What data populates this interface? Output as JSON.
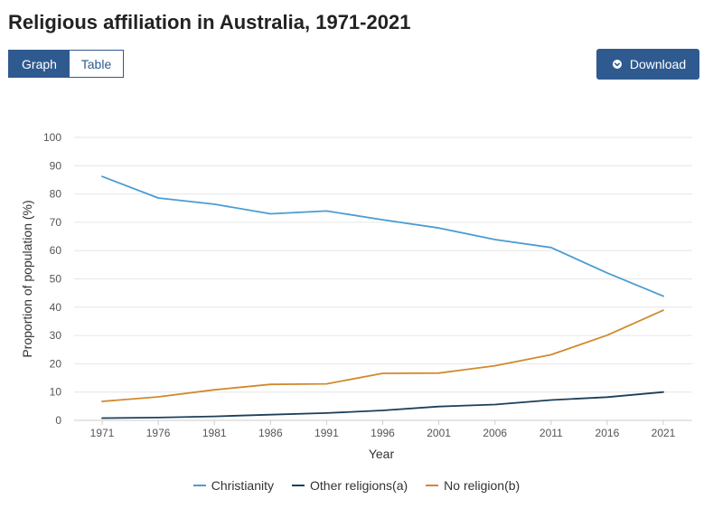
{
  "title": "Religious affiliation in Australia, 1971-2021",
  "tabs": {
    "graph": "Graph",
    "table": "Table"
  },
  "download_label": "Download",
  "icons": {
    "download": "chevron-down-icon"
  },
  "colors": {
    "accent": "#2f5a8f"
  },
  "chart_data": {
    "type": "line",
    "xlabel": "Year",
    "ylabel": "Proportion of population (%)",
    "ylim": [
      0,
      100
    ],
    "yticks": [
      "0",
      "10",
      "20",
      "30",
      "40",
      "50",
      "60",
      "70",
      "80",
      "90",
      "100"
    ],
    "categories": [
      "1971",
      "1976",
      "1981",
      "1986",
      "1991",
      "1996",
      "2001",
      "2006",
      "2011",
      "2016",
      "2021"
    ],
    "grid": true,
    "legend_position": "bottom",
    "series": [
      {
        "name": "Christianity",
        "color": "#4b9cd3",
        "values": [
          86.2,
          78.6,
          76.4,
          73.0,
          74.0,
          70.9,
          68.0,
          63.9,
          61.1,
          52.1,
          43.9
        ]
      },
      {
        "name": "Other religions(a)",
        "color": "#1c3f5a",
        "values": [
          0.8,
          1.0,
          1.4,
          2.0,
          2.6,
          3.5,
          4.9,
          5.6,
          7.2,
          8.2,
          10.0
        ]
      },
      {
        "name": "No religion(b)",
        "color": "#d08a2c",
        "values": [
          6.7,
          8.3,
          10.8,
          12.7,
          12.9,
          16.6,
          16.7,
          19.3,
          23.2,
          30.1,
          38.9
        ]
      }
    ]
  }
}
